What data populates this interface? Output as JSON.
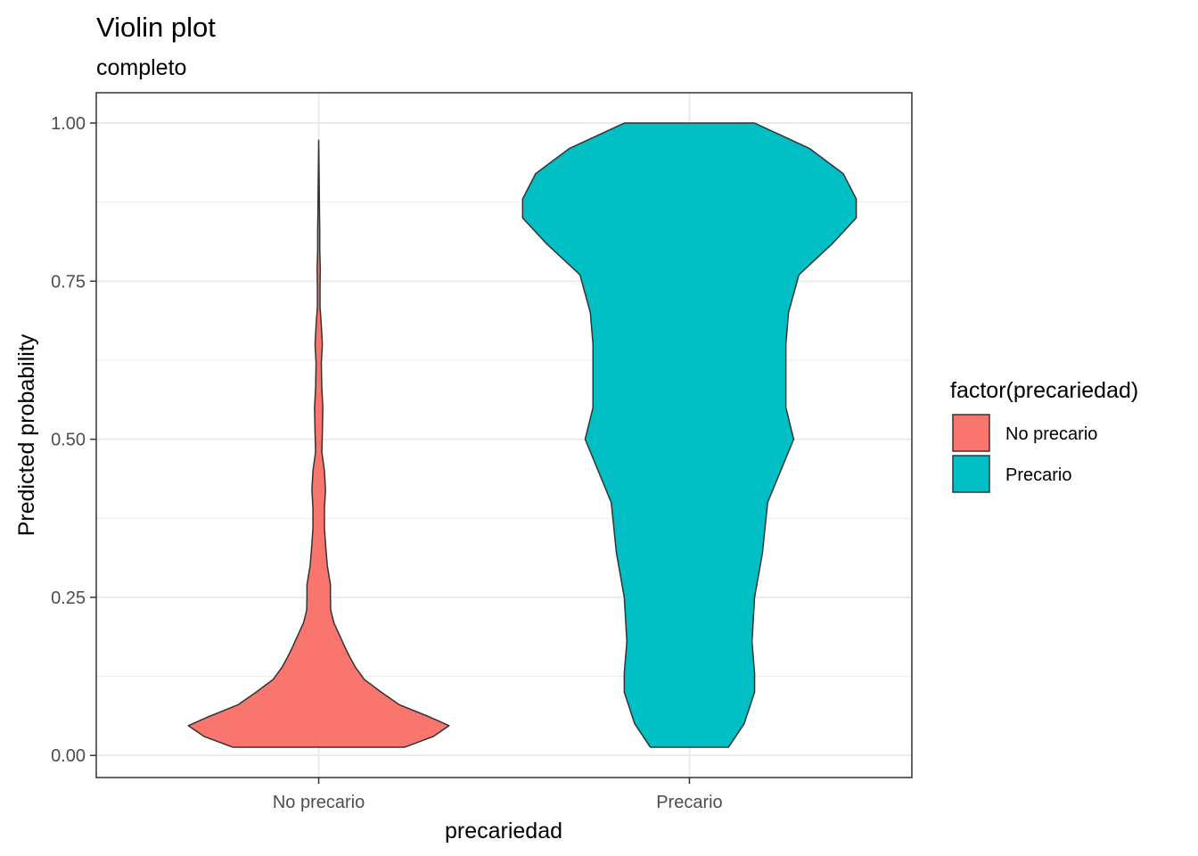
{
  "chart_data": {
    "type": "violin",
    "title": "Violin plot",
    "subtitle": "completo",
    "xlabel": "precariedad",
    "ylabel": "Predicted probability",
    "categories": [
      "No precario",
      "Precario"
    ],
    "ylim": [
      -0.035,
      1.048
    ],
    "yticks": [
      0.0,
      0.25,
      0.5,
      0.75,
      1.0
    ],
    "ytick_labels": [
      "0.00",
      "0.25",
      "0.50",
      "0.75",
      "1.00"
    ],
    "grid": true,
    "legend": {
      "title": "factor(precariedad)",
      "position": "right",
      "entries": [
        {
          "label": "No precario",
          "color": "#F8766D"
        },
        {
          "label": "Precario",
          "color": "#00BFC4"
        }
      ]
    },
    "series": [
      {
        "category": "No precario",
        "color": "#F8766D",
        "y": [
          0.013,
          0.03,
          0.047,
          0.06,
          0.08,
          0.1,
          0.12,
          0.14,
          0.155,
          0.17,
          0.19,
          0.21,
          0.23,
          0.25,
          0.27,
          0.3,
          0.33,
          0.36,
          0.39,
          0.42,
          0.45,
          0.48,
          0.51,
          0.55,
          0.58,
          0.62,
          0.65,
          0.68,
          0.71,
          0.74,
          0.77,
          0.8,
          0.83,
          0.86,
          0.9,
          0.94,
          0.973
        ],
        "density": [
          0.33,
          0.44,
          0.5,
          0.43,
          0.31,
          0.24,
          0.175,
          0.14,
          0.12,
          0.102,
          0.08,
          0.058,
          0.046,
          0.045,
          0.045,
          0.033,
          0.027,
          0.022,
          0.022,
          0.026,
          0.022,
          0.012,
          0.014,
          0.016,
          0.012,
          0.01,
          0.014,
          0.01,
          0.005,
          0.005,
          0.006,
          0.004,
          0.004,
          0.003,
          0.002,
          0.001,
          0.0
        ]
      },
      {
        "category": "Precario",
        "color": "#00BFC4",
        "y": [
          0.013,
          0.05,
          0.1,
          0.13,
          0.18,
          0.25,
          0.32,
          0.4,
          0.46,
          0.5,
          0.55,
          0.6,
          0.65,
          0.7,
          0.76,
          0.81,
          0.85,
          0.88,
          0.92,
          0.96,
          1.0
        ],
        "density": [
          0.15,
          0.21,
          0.25,
          0.25,
          0.24,
          0.25,
          0.28,
          0.3,
          0.36,
          0.4,
          0.37,
          0.37,
          0.37,
          0.38,
          0.42,
          0.55,
          0.64,
          0.64,
          0.59,
          0.46,
          0.25
        ]
      }
    ]
  }
}
